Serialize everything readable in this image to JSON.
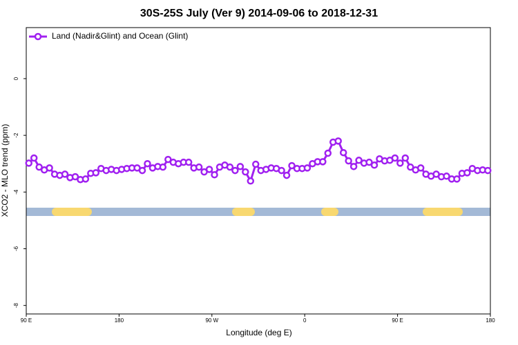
{
  "chart_data": {
    "type": "line",
    "title": "30S-25S July (Ver 9)   2014-09-06 to 2018-12-31",
    "x_label": "Longitude (deg E)",
    "y_label": "XCO2 - MLO trend (ppm)",
    "xlim": [
      90,
      540
    ],
    "xticks": [
      {
        "value": 90,
        "label": "90 E"
      },
      {
        "value": 180,
        "label": "180"
      },
      {
        "value": 270,
        "label": "90 W"
      },
      {
        "value": 360,
        "label": "0"
      },
      {
        "value": 450,
        "label": "90 E"
      },
      {
        "value": 540,
        "label": "180"
      }
    ],
    "ylim": [
      -8.3,
      1.8
    ],
    "yticks": [
      -8,
      -6,
      -4,
      -2,
      0
    ],
    "legend": "top-left",
    "x": [
      92.5,
      97.5,
      102.5,
      107.5,
      112.5,
      117.5,
      122.5,
      127.5,
      132.5,
      137.5,
      142.5,
      147.5,
      152.5,
      157.5,
      162.5,
      167.5,
      172.5,
      177.5,
      182.5,
      187.5,
      192.5,
      197.5,
      202.5,
      207.5,
      212.5,
      217.5,
      222.5,
      227.5,
      232.5,
      237.5,
      242.5,
      247.5,
      252.5,
      257.5,
      262.5,
      267.5,
      272.5,
      277.5,
      282.5,
      287.5,
      292.5,
      297.5,
      302.5,
      307.5,
      312.5,
      317.5,
      322.5,
      327.5,
      332.5,
      337.5,
      342.5,
      347.5,
      352.5,
      357.5,
      362.5,
      367.5,
      372.5,
      377.5,
      382.5,
      387.5,
      392.5,
      397.5,
      402.5,
      407.5,
      412.5,
      417.5,
      422.5,
      427.5,
      432.5,
      437.5,
      442.5,
      447.5,
      452.5,
      457.5,
      462.5,
      467.5,
      472.5,
      477.5,
      482.5,
      487.5,
      492.5,
      497.5,
      502.5,
      507.5,
      512.5,
      517.5,
      522.5,
      527.5,
      532.5,
      537.5
    ],
    "series": [
      {
        "name": "Land (Nadir&Glint) and Ocean (Glint)",
        "color": "#a020f0",
        "values": [
          -2.98,
          -2.8,
          -3.12,
          -3.22,
          -3.15,
          -3.37,
          -3.41,
          -3.37,
          -3.49,
          -3.46,
          -3.56,
          -3.54,
          -3.34,
          -3.32,
          -3.17,
          -3.24,
          -3.2,
          -3.24,
          -3.2,
          -3.17,
          -3.15,
          -3.15,
          -3.24,
          -3.0,
          -3.15,
          -3.1,
          -3.12,
          -2.85,
          -2.95,
          -3.0,
          -2.95,
          -2.95,
          -3.15,
          -3.12,
          -3.29,
          -3.2,
          -3.39,
          -3.12,
          -3.05,
          -3.12,
          -3.24,
          -3.1,
          -3.29,
          -3.61,
          -3.02,
          -3.24,
          -3.2,
          -3.15,
          -3.17,
          -3.24,
          -3.41,
          -3.07,
          -3.17,
          -3.17,
          -3.15,
          -3.0,
          -2.93,
          -2.93,
          -2.63,
          -2.24,
          -2.2,
          -2.61,
          -2.9,
          -3.1,
          -2.88,
          -2.98,
          -2.95,
          -3.05,
          -2.83,
          -2.9,
          -2.88,
          -2.8,
          -2.98,
          -2.8,
          -3.12,
          -3.22,
          -3.15,
          -3.37,
          -3.44,
          -3.37,
          -3.46,
          -3.44,
          -3.54,
          -3.54,
          -3.34,
          -3.32,
          -3.17,
          -3.24,
          -3.22,
          -3.24
        ]
      }
    ]
  }
}
